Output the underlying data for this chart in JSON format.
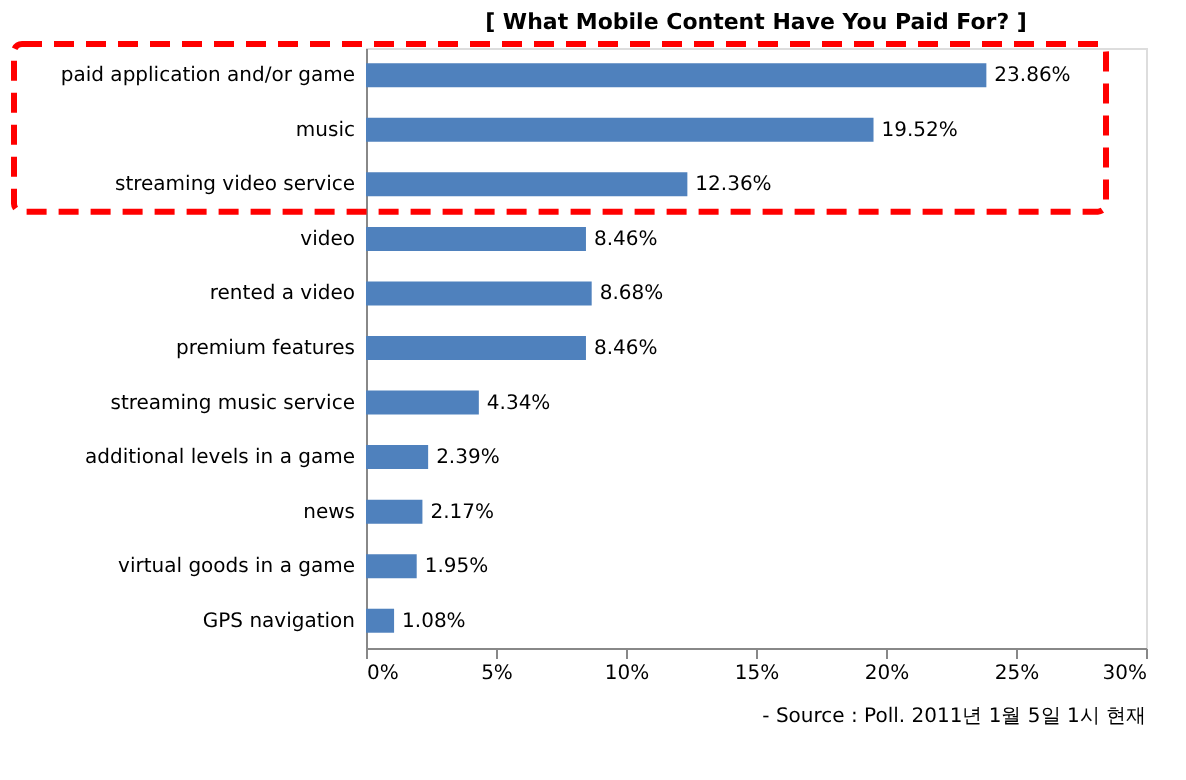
{
  "chart_data": {
    "type": "bar",
    "orientation": "horizontal",
    "title": "[ What Mobile Content Have You Paid For? ]",
    "categories": [
      "paid application and/or game",
      "music",
      "streaming video service",
      "video",
      "rented a video",
      "premium features",
      "streaming music service",
      "additional levels in a game",
      "news",
      "virtual goods in a game",
      "GPS navigation"
    ],
    "values": [
      23.86,
      19.52,
      12.36,
      8.46,
      8.68,
      8.46,
      4.34,
      2.39,
      2.17,
      1.95,
      1.08
    ],
    "value_labels": [
      "23.86%",
      "19.52%",
      "12.36%",
      "8.46%",
      "8.68%",
      "8.46%",
      "4.34%",
      "2.39%",
      "2.17%",
      "1.95%",
      "1.08%"
    ],
    "color": "#4f81bd",
    "xlim": [
      0,
      30
    ],
    "xticks": [
      {
        "value": 0,
        "label": "0%"
      },
      {
        "value": 5,
        "label": "5%"
      },
      {
        "value": 10,
        "label": "10%"
      },
      {
        "value": 15,
        "label": "15%"
      },
      {
        "value": 20,
        "label": "20%"
      },
      {
        "value": 25,
        "label": "25%"
      },
      {
        "value": 30,
        "label": "30%"
      }
    ],
    "annotations": [
      "- Source : Poll. 2011년 1월 5일 1시 현재"
    ]
  }
}
